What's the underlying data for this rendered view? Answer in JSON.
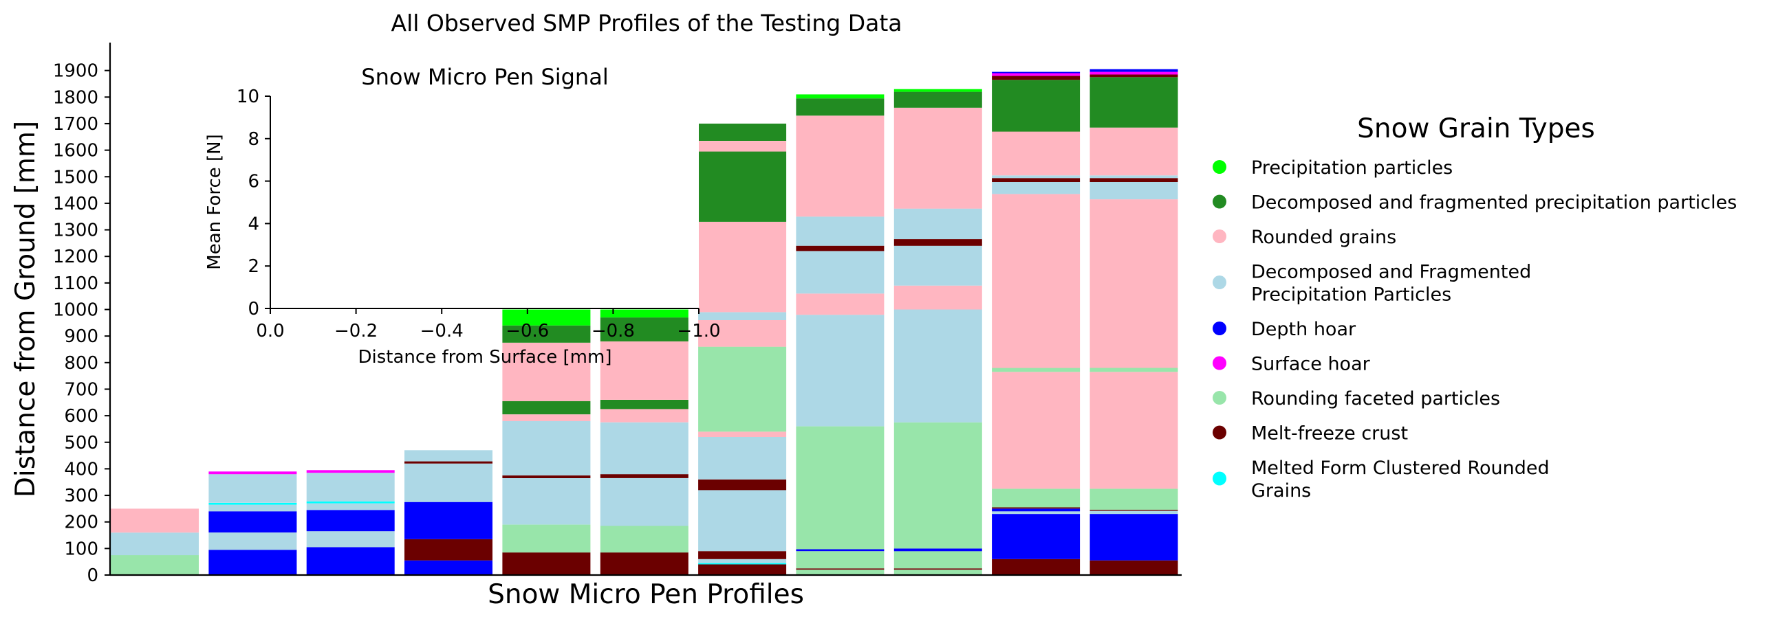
{
  "chart_data": {
    "type": "bar",
    "title": "All Observed SMP Profiles of the Testing Data",
    "xlabel": "Snow Micro Pen Profiles",
    "ylabel": "Distance from Ground [mm]",
    "ylim": [
      0,
      2000
    ],
    "yticks": [
      0,
      100,
      200,
      300,
      400,
      500,
      600,
      700,
      800,
      900,
      1000,
      1100,
      1200,
      1300,
      1400,
      1500,
      1600,
      1700,
      1800,
      1900
    ],
    "colors": {
      "pp": "#00ff00",
      "dfdc": "#228b22",
      "rg": "#ffb6c1",
      "df": "#add8e6",
      "dh": "#0000ff",
      "sh": "#ff00ff",
      "rgfc": "#98e5aa",
      "mfcr": "#6b0000",
      "mfcl": "#00ffff"
    },
    "legend": {
      "title": "Snow Grain Types",
      "placement": "right",
      "entries": [
        {
          "key": "pp",
          "lines": [
            "Precipitation particles"
          ]
        },
        {
          "key": "dfdc",
          "lines": [
            "Decomposed and fragmented precipitation particles"
          ]
        },
        {
          "key": "rg",
          "lines": [
            "Rounded grains"
          ]
        },
        {
          "key": "df",
          "lines": [
            "Decomposed and Fragmented",
            "Precipitation Particles"
          ]
        },
        {
          "key": "dh",
          "lines": [
            "Depth hoar"
          ]
        },
        {
          "key": "sh",
          "lines": [
            "Surface hoar"
          ]
        },
        {
          "key": "rgfc",
          "lines": [
            "Rounding faceted particles"
          ]
        },
        {
          "key": "mfcr",
          "lines": [
            "Melt-freeze crust"
          ]
        },
        {
          "key": "mfcl",
          "lines": [
            "Melted Form Clustered Rounded",
            "Grains"
          ]
        }
      ]
    },
    "profiles": [
      [
        [
          "rgfc",
          0,
          75
        ],
        [
          "df",
          75,
          160
        ],
        [
          "rg",
          160,
          250
        ]
      ],
      [
        [
          "dh",
          0,
          95
        ],
        [
          "df",
          95,
          160
        ],
        [
          "dh",
          160,
          240
        ],
        [
          "df",
          240,
          265
        ],
        [
          "mfcl",
          265,
          272
        ],
        [
          "df",
          272,
          380
        ],
        [
          "sh",
          380,
          390
        ]
      ],
      [
        [
          "dh",
          0,
          105
        ],
        [
          "df",
          105,
          165
        ],
        [
          "dh",
          165,
          245
        ],
        [
          "df",
          245,
          270
        ],
        [
          "mfcl",
          270,
          277
        ],
        [
          "df",
          277,
          385
        ],
        [
          "sh",
          385,
          395
        ]
      ],
      [
        [
          "dh",
          0,
          55
        ],
        [
          "mfcr",
          55,
          135
        ],
        [
          "dh",
          135,
          275
        ],
        [
          "df",
          275,
          420
        ],
        [
          "mfcr",
          420,
          428
        ],
        [
          "df",
          428,
          470
        ]
      ],
      [
        [
          "mfcr",
          0,
          85
        ],
        [
          "rgfc",
          85,
          190
        ],
        [
          "df",
          190,
          365
        ],
        [
          "mfcr",
          365,
          375
        ],
        [
          "df",
          375,
          580
        ],
        [
          "rg",
          580,
          605
        ],
        [
          "dfdc",
          605,
          655
        ],
        [
          "rg",
          655,
          875
        ],
        [
          "dfdc",
          875,
          940
        ],
        [
          "pp",
          940,
          1000
        ]
      ],
      [
        [
          "mfcr",
          0,
          85
        ],
        [
          "rgfc",
          85,
          185
        ],
        [
          "df",
          185,
          365
        ],
        [
          "mfcr",
          365,
          380
        ],
        [
          "df",
          380,
          575
        ],
        [
          "rg",
          575,
          625
        ],
        [
          "dfdc",
          625,
          660
        ],
        [
          "rg",
          660,
          880
        ],
        [
          "dfdc",
          880,
          970
        ],
        [
          "pp",
          970,
          1000
        ]
      ],
      [
        [
          "mfcr",
          0,
          40
        ],
        [
          "mfcl",
          40,
          45
        ],
        [
          "df",
          45,
          60
        ],
        [
          "mfcr",
          60,
          90
        ],
        [
          "df",
          90,
          320
        ],
        [
          "mfcr",
          320,
          360
        ],
        [
          "df",
          360,
          520
        ],
        [
          "rg",
          520,
          540
        ],
        [
          "rgfc",
          540,
          860
        ],
        [
          "rg",
          860,
          960
        ],
        [
          "df",
          960,
          990
        ],
        [
          "rg",
          990,
          1330
        ],
        [
          "dfdc",
          1330,
          1595
        ],
        [
          "rg",
          1595,
          1635
        ],
        [
          "dfdc",
          1635,
          1700
        ]
      ],
      [
        [
          "rgfc",
          0,
          20
        ],
        [
          "mfcr",
          20,
          25
        ],
        [
          "rgfc",
          25,
          90
        ],
        [
          "dh",
          90,
          97
        ],
        [
          "rgfc",
          97,
          560
        ],
        [
          "df",
          560,
          980
        ],
        [
          "rg",
          980,
          1060
        ],
        [
          "df",
          1060,
          1220
        ],
        [
          "mfcr",
          1220,
          1240
        ],
        [
          "df",
          1240,
          1350
        ],
        [
          "rg",
          1350,
          1730
        ],
        [
          "dfdc",
          1730,
          1795
        ],
        [
          "pp",
          1795,
          1810
        ]
      ],
      [
        [
          "rgfc",
          0,
          20
        ],
        [
          "mfcr",
          20,
          25
        ],
        [
          "rgfc",
          25,
          90
        ],
        [
          "dh",
          90,
          100
        ],
        [
          "rgfc",
          100,
          575
        ],
        [
          "df",
          575,
          1000
        ],
        [
          "rg",
          1000,
          1090
        ],
        [
          "df",
          1090,
          1240
        ],
        [
          "mfcr",
          1240,
          1265
        ],
        [
          "df",
          1265,
          1380
        ],
        [
          "rg",
          1380,
          1760
        ],
        [
          "dfdc",
          1760,
          1820
        ],
        [
          "pp",
          1820,
          1830
        ]
      ],
      [
        [
          "mfcr",
          0,
          60
        ],
        [
          "dh",
          60,
          230
        ],
        [
          "df",
          230,
          240
        ],
        [
          "dh",
          240,
          250
        ],
        [
          "mfcr",
          250,
          255
        ],
        [
          "rgfc",
          255,
          325
        ],
        [
          "rg",
          325,
          765
        ],
        [
          "rgfc",
          765,
          780
        ],
        [
          "rg",
          780,
          1435
        ],
        [
          "df",
          1435,
          1480
        ],
        [
          "mfcr",
          1480,
          1495
        ],
        [
          "df",
          1495,
          1505
        ],
        [
          "rg",
          1505,
          1670
        ],
        [
          "dfdc",
          1670,
          1865
        ],
        [
          "mfcr",
          1865,
          1880
        ],
        [
          "sh",
          1880,
          1890
        ],
        [
          "dh",
          1890,
          1895
        ]
      ],
      [
        [
          "mfcr",
          0,
          55
        ],
        [
          "dh",
          55,
          230
        ],
        [
          "df",
          230,
          242
        ],
        [
          "mfcr",
          242,
          246
        ],
        [
          "rgfc",
          246,
          325
        ],
        [
          "rg",
          325,
          765
        ],
        [
          "rgfc",
          765,
          780
        ],
        [
          "rg",
          780,
          1415
        ],
        [
          "df",
          1415,
          1480
        ],
        [
          "mfcr",
          1480,
          1495
        ],
        [
          "df",
          1495,
          1505
        ],
        [
          "rg",
          1505,
          1685
        ],
        [
          "dfdc",
          1685,
          1875
        ],
        [
          "mfcr",
          1875,
          1885
        ],
        [
          "sh",
          1885,
          1895
        ],
        [
          "dh",
          1895,
          1905
        ]
      ]
    ],
    "inset": {
      "type": "line",
      "title": "Snow Micro Pen Signal",
      "xlabel": "Distance from Surface [mm]",
      "ylabel": "Mean Force [N]",
      "xlim": [
        0.0,
        -1.0
      ],
      "ylim": [
        0,
        10
      ],
      "xticks": [
        "0.0",
        "−0.2",
        "−0.4",
        "−0.6",
        "−0.8",
        "−1.0"
      ],
      "yticks": [
        "0",
        "2",
        "4",
        "6",
        "8",
        "10"
      ],
      "series": []
    }
  }
}
